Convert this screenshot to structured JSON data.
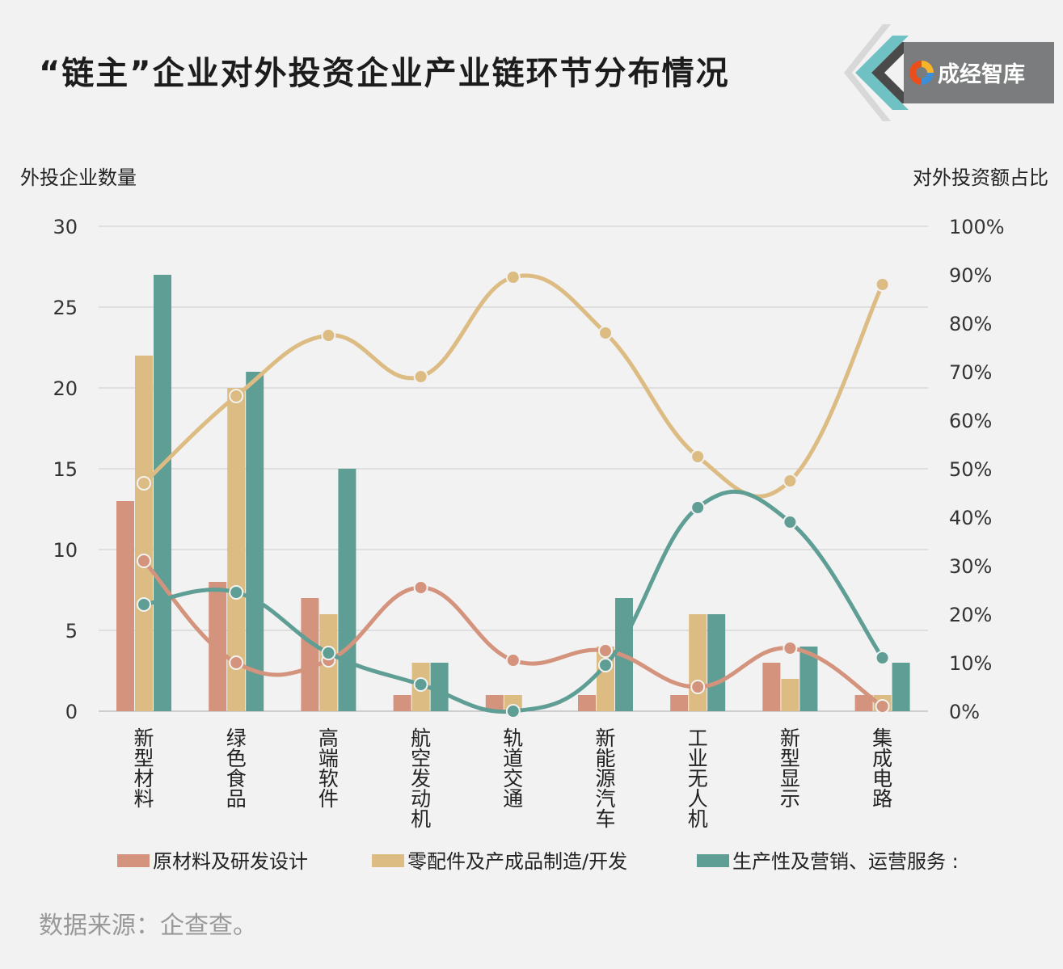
{
  "title": "“链主”企业对外投资企业产业链环节分布情况",
  "brand": {
    "name": "成经智库",
    "logo_icon": "swirl-logo-icon"
  },
  "source": "数据来源：企查查。",
  "colors": {
    "series1": "#d4937c",
    "series2": "#dcbc82",
    "series3": "#5f9e95",
    "grid": "#cccccc",
    "text": "#333333"
  },
  "chart_data": {
    "type": "bar",
    "categories": [
      "新型材料",
      "绿色食品",
      "高端软件",
      "航空发动机",
      "轨道交通",
      "新能源汽车",
      "工业无人机",
      "新型显示",
      "集成电路"
    ],
    "ylabel": "外投企业数量",
    "y2label": "对外投资额占比",
    "ylim": [
      0,
      30
    ],
    "y_ticks": [
      "0",
      "5",
      "10",
      "15",
      "20",
      "25",
      "30"
    ],
    "y2lim": [
      0,
      100
    ],
    "y2_ticks": [
      "0%",
      "10%",
      "20%",
      "30%",
      "40%",
      "50%",
      "60%",
      "70%",
      "80%",
      "90%",
      "100%"
    ],
    "grid": true,
    "legend_position": "bottom",
    "series": [
      {
        "name": "原材料及研发设计",
        "values": [
          13,
          8,
          7,
          1,
          1,
          1,
          1,
          3,
          1
        ],
        "share_percent": [
          31,
          10,
          10.5,
          25.5,
          10.5,
          12.5,
          5,
          13,
          1
        ]
      },
      {
        "name": "零配件及产成品制造/开发",
        "values": [
          22,
          20,
          6,
          3,
          1,
          4,
          6,
          2,
          1
        ],
        "share_percent": [
          47,
          65,
          77.5,
          69,
          89.5,
          78,
          52.5,
          47.5,
          88
        ]
      },
      {
        "name": "生产性及营销、运营服务 :",
        "values": [
          27,
          21,
          15,
          3,
          0,
          7,
          6,
          4,
          3
        ],
        "share_percent": [
          22,
          24.5,
          12,
          5.5,
          0,
          9.5,
          42,
          39,
          11
        ]
      }
    ]
  }
}
